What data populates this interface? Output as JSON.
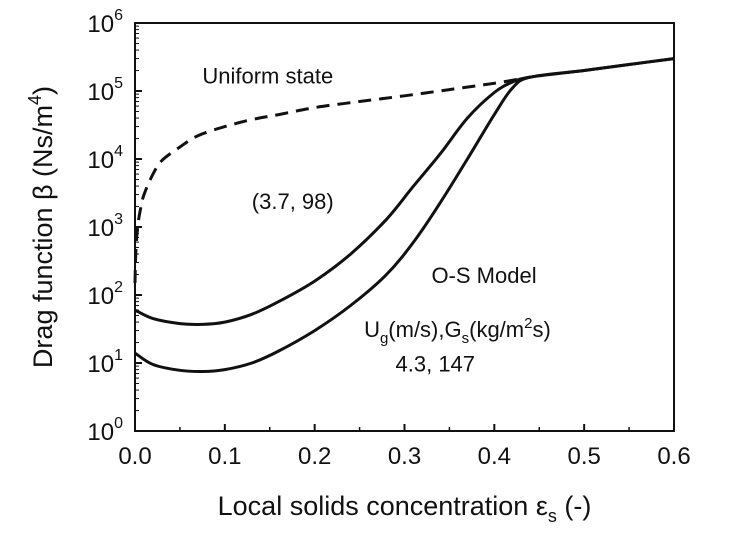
{
  "chart_data": {
    "type": "line",
    "title": "",
    "xlabel": "Local solids concentration ε",
    "xlabel_sub": "s",
    "xlabel_suffix": " (-)",
    "ylabel": "Drag function β (Ns/m",
    "ylabel_sup": "4",
    "ylabel_suffix": ")",
    "xlim": [
      0.0,
      0.6
    ],
    "ylim": [
      1,
      1000000
    ],
    "yscale": "log",
    "grid": false,
    "legend": "none",
    "x_ticks": [
      {
        "value": 0.0,
        "label": "0.0"
      },
      {
        "value": 0.1,
        "label": "0.1"
      },
      {
        "value": 0.2,
        "label": "0.2"
      },
      {
        "value": 0.3,
        "label": "0.3"
      },
      {
        "value": 0.4,
        "label": "0.4"
      },
      {
        "value": 0.5,
        "label": "0.5"
      },
      {
        "value": 0.6,
        "label": "0.6"
      }
    ],
    "y_ticks": [
      {
        "value": 1,
        "base": "10",
        "exp": "0"
      },
      {
        "value": 10,
        "base": "10",
        "exp": "1"
      },
      {
        "value": 100,
        "base": "10",
        "exp": "2"
      },
      {
        "value": 1000,
        "base": "10",
        "exp": "3"
      },
      {
        "value": 10000,
        "base": "10",
        "exp": "4"
      },
      {
        "value": 100000,
        "base": "10",
        "exp": "5"
      },
      {
        "value": 1000000,
        "base": "10",
        "exp": "6"
      }
    ],
    "series": [
      {
        "style": "dashed",
        "color": "#111111",
        "x": [
          0.0,
          0.001,
          0.003,
          0.006,
          0.01,
          0.02,
          0.03,
          0.05,
          0.07,
          0.1,
          0.13,
          0.16,
          0.2,
          0.25,
          0.3,
          0.35,
          0.4,
          0.44
        ],
        "y": [
          150,
          450,
          1000,
          1800,
          3000,
          6000,
          9500,
          15000,
          22000,
          30000,
          38000,
          45000,
          57000,
          70000,
          85000,
          105000,
          130000,
          160000
        ]
      },
      {
        "style": "solid",
        "color": "#111111",
        "x": [
          0.0,
          0.02,
          0.05,
          0.075,
          0.1,
          0.13,
          0.16,
          0.2,
          0.24,
          0.28,
          0.31,
          0.34,
          0.37,
          0.4,
          0.42,
          0.44,
          0.5,
          0.55,
          0.6
        ],
        "y": [
          60,
          45,
          38,
          37,
          40,
          52,
          80,
          160,
          400,
          1300,
          4000,
          12000,
          40000,
          95000,
          135000,
          160000,
          200000,
          245000,
          300000
        ]
      },
      {
        "style": "solid",
        "color": "#111111",
        "x": [
          0.0,
          0.02,
          0.05,
          0.075,
          0.1,
          0.13,
          0.16,
          0.2,
          0.24,
          0.28,
          0.31,
          0.34,
          0.37,
          0.4,
          0.42,
          0.44,
          0.5,
          0.55,
          0.6
        ],
        "y": [
          14,
          9.5,
          7.8,
          7.5,
          8,
          10,
          15,
          30,
          70,
          200,
          600,
          2300,
          10000,
          45000,
          110000,
          160000,
          200000,
          245000,
          300000
        ]
      }
    ],
    "annotations": {
      "uniform_state": {
        "text": "Uniform state",
        "x": 0.075,
        "y": 130000
      },
      "pair_upper": {
        "text": "(3.7, 98)",
        "x": 0.13,
        "y": 1850
      },
      "model": {
        "text": "O-S Model",
        "x": 0.33,
        "y": 150
      },
      "params_U": "U",
      "params_U_sub": "g",
      "params_units1": "(m/s),G",
      "params_G_sub": "s",
      "params_units2": "(kg/m",
      "params_sup": "2",
      "params_units3": "s)",
      "params_anchor": {
        "x": 0.255,
        "y": 24
      },
      "pair_lower": {
        "text": "4.3,  147",
        "x": 0.29,
        "y": 7.5
      }
    }
  }
}
